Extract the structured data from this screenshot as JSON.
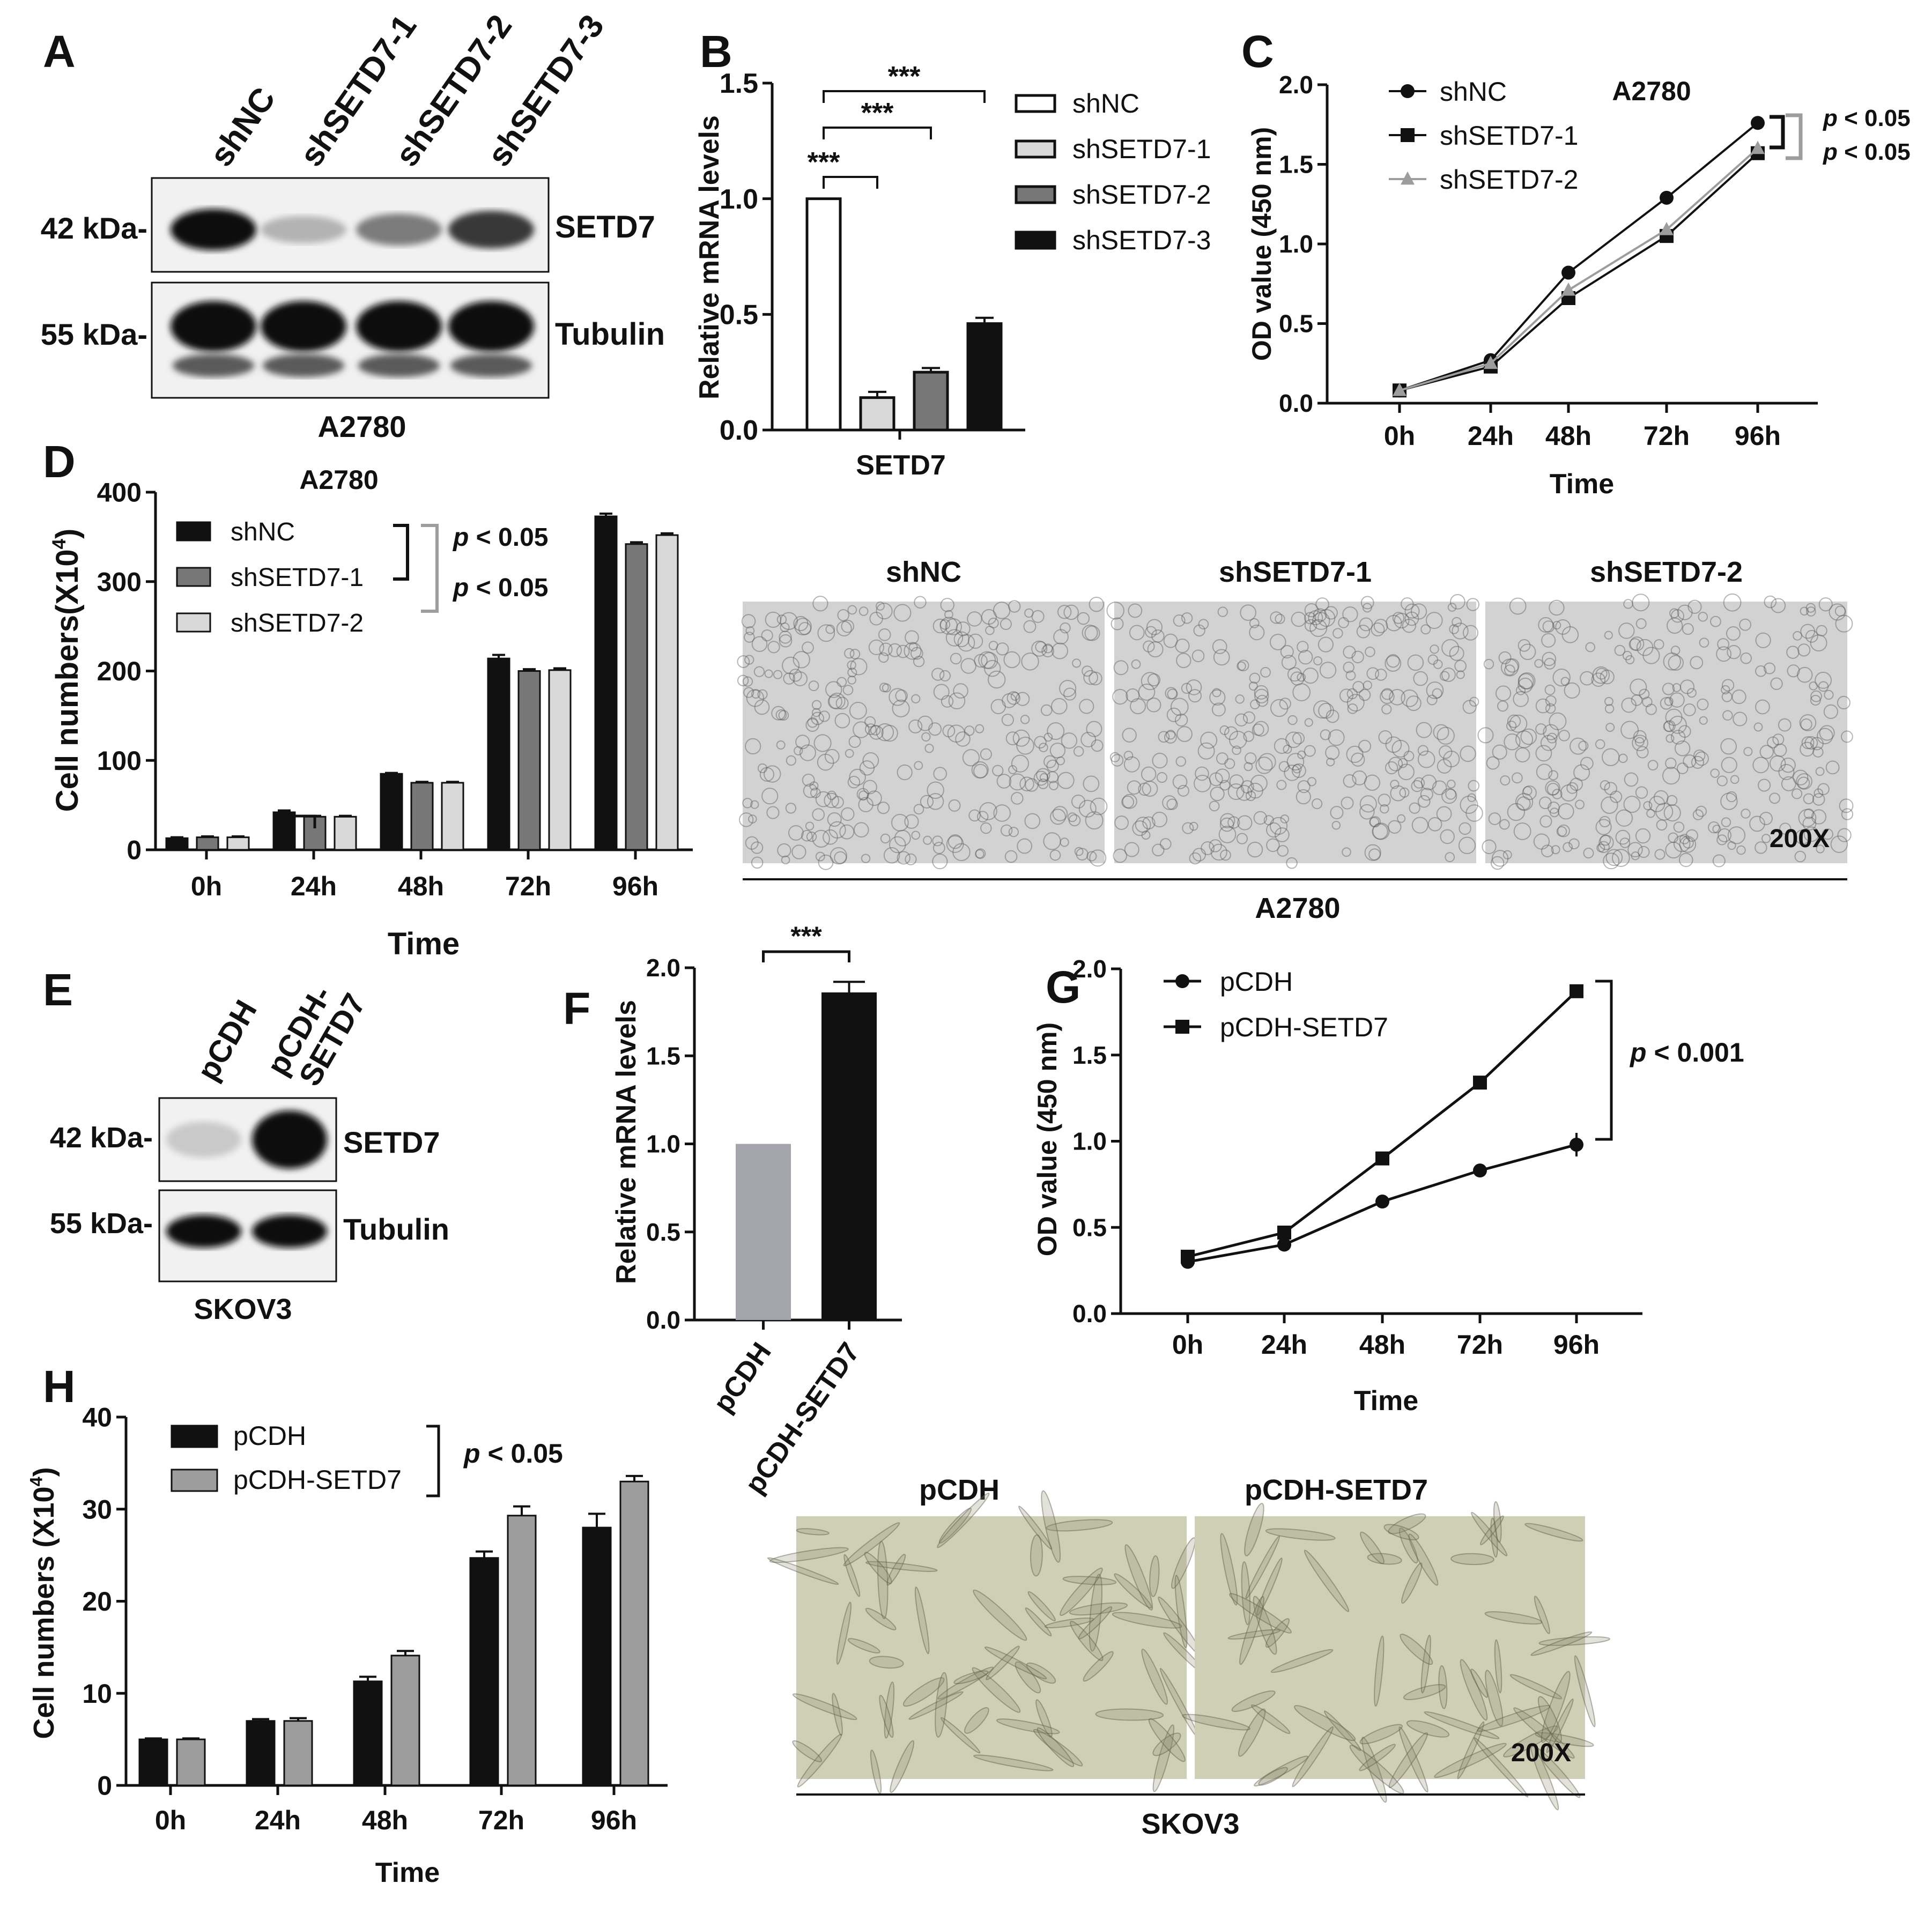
{
  "colors": {
    "black": "#111111",
    "dark_gray": "#777777",
    "mid_gray": "#9d9d9d",
    "light_gray": "#d9d9d9",
    "pcdh_gray": "#a4a4ac",
    "micro_a2780": "#d2d2d2",
    "micro_skov3": "#cfcfb6"
  },
  "panel_A": {
    "letter": "A",
    "lanes": [
      "shNC",
      "shSETD7-1",
      "shSETD7-2",
      "shSETD7-3"
    ],
    "mw_setd7": "42 kDa-",
    "mw_tubulin": "55 kDa-",
    "label_setd7": "SETD7",
    "label_tubulin": "Tubulin",
    "cell_line": "A2780",
    "setd7_band_intensity": [
      1.0,
      0.25,
      0.5,
      0.8
    ],
    "tubulin_band_intensity": [
      1.0,
      1.0,
      1.0,
      1.0
    ]
  },
  "panel_E": {
    "letter": "E",
    "lanes": [
      "pCDH",
      "pCDH-\nSETD7"
    ],
    "mw_setd7": "42 kDa-",
    "mw_tubulin": "55 kDa-",
    "label_setd7": "SETD7",
    "label_tubulin": "Tubulin",
    "cell_line": "SKOV3",
    "setd7_band_intensity": [
      0.15,
      1.0
    ],
    "tubulin_band_intensity": [
      1.0,
      1.0
    ]
  },
  "panel_D_images": {
    "titles": [
      "shNC",
      "shSETD7-1",
      "shSETD7-2"
    ],
    "magnification": "200X",
    "cell_line": "A2780"
  },
  "panel_H_images": {
    "titles": [
      "pCDH",
      "pCDH-SETD7"
    ],
    "magnification": "200X",
    "cell_line": "SKOV3"
  },
  "chart_data": [
    {
      "panel": "B",
      "type": "bar",
      "ylabel": "Relative mRNA levels",
      "xlabel": "SETD7",
      "ylim": [
        0,
        1.5
      ],
      "yticks": [
        0.0,
        0.5,
        1.0,
        1.5
      ],
      "yticklabels": [
        "0.0",
        "0.5",
        "1.0",
        "1.5"
      ],
      "series": [
        {
          "name": "shNC",
          "values": [
            1.0
          ],
          "errors": [
            0
          ]
        },
        {
          "name": "shSETD7-1",
          "values": [
            0.14
          ],
          "errors": [
            0.025
          ]
        },
        {
          "name": "shSETD7-2",
          "values": [
            0.25
          ],
          "errors": [
            0.018
          ]
        },
        {
          "name": "shSETD7-3",
          "values": [
            0.46
          ],
          "errors": [
            0.025
          ]
        }
      ],
      "significance": [
        {
          "from": 0,
          "to": 1,
          "label": "***"
        },
        {
          "from": 0,
          "to": 2,
          "label": "***"
        },
        {
          "from": 0,
          "to": 3,
          "label": "***"
        }
      ],
      "legend": "right"
    },
    {
      "panel": "C",
      "type": "line",
      "title": "A2780",
      "ylabel": "OD value (450 nm)",
      "xlabel": "Time",
      "categories": [
        "0h",
        "24h",
        "48h",
        "72h",
        "96h"
      ],
      "ylim": [
        0,
        2.0
      ],
      "yticks": [
        0.0,
        0.5,
        1.0,
        1.5,
        2.0
      ],
      "yticklabels": [
        "0.0",
        "0.5",
        "1.0",
        "1.5",
        "2.0"
      ],
      "series": [
        {
          "name": "shNC",
          "values": [
            0.08,
            0.27,
            0.82,
            1.29,
            1.76
          ]
        },
        {
          "name": "shSETD7-1",
          "values": [
            0.08,
            0.23,
            0.66,
            1.05,
            1.57
          ]
        },
        {
          "name": "shSETD7-2",
          "values": [
            0.08,
            0.25,
            0.71,
            1.09,
            1.6
          ]
        }
      ],
      "pvalues": [
        "p < 0.05",
        "p < 0.05"
      ],
      "legend": "top-left"
    },
    {
      "panel": "D",
      "type": "bar",
      "title": "A2780",
      "ylabel": "Cell numbers(X10",
      "ylabel_sup": "4",
      "ylabel_end": ")",
      "xlabel": "Time",
      "categories": [
        "0h",
        "24h",
        "48h",
        "72h",
        "96h"
      ],
      "ylim": [
        0,
        400
      ],
      "yticks": [
        0,
        100,
        200,
        300,
        400
      ],
      "yticklabels": [
        "0",
        "100",
        "200",
        "300",
        "400"
      ],
      "series": [
        {
          "name": "shNC",
          "values": [
            13,
            42,
            85,
            214,
            373
          ],
          "errors": [
            1,
            2,
            1,
            4,
            3
          ]
        },
        {
          "name": "shSETD7-1",
          "values": [
            14,
            37,
            75,
            200,
            342
          ],
          "errors": [
            1,
            1,
            1,
            2,
            2
          ]
        },
        {
          "name": "shSETD7-2",
          "values": [
            14,
            37,
            75,
            201,
            352
          ],
          "errors": [
            1,
            1,
            1,
            2,
            2
          ]
        }
      ],
      "pvalues": [
        "p < 0.05",
        "p < 0.05"
      ],
      "legend": "top-left"
    },
    {
      "panel": "F",
      "type": "bar",
      "ylabel": "Relative mRNA levels",
      "categories": [
        "pCDH",
        "pCDH-SETD7"
      ],
      "ylim": [
        0,
        2.0
      ],
      "yticks": [
        0.0,
        0.5,
        1.0,
        1.5,
        2.0
      ],
      "yticklabels": [
        "0.0",
        "0.5",
        "1.0",
        "1.5",
        "2.0"
      ],
      "values": [
        1.0,
        1.86
      ],
      "errors": [
        0,
        0.06
      ],
      "significance": [
        {
          "from": 0,
          "to": 1,
          "label": "***"
        }
      ]
    },
    {
      "panel": "G",
      "type": "line",
      "ylabel": "OD value (450 nm)",
      "xlabel": "Time",
      "categories": [
        "0h",
        "24h",
        "48h",
        "72h",
        "96h"
      ],
      "ylim": [
        0,
        2.0
      ],
      "yticks": [
        0.0,
        0.5,
        1.0,
        1.5,
        2.0
      ],
      "yticklabels": [
        "0.0",
        "0.5",
        "1.0",
        "1.5",
        "2.0"
      ],
      "series": [
        {
          "name": "pCDH",
          "values": [
            0.3,
            0.4,
            0.65,
            0.83,
            0.98
          ]
        },
        {
          "name": "pCDH-SETD7",
          "values": [
            0.33,
            0.47,
            0.9,
            1.34,
            1.87
          ]
        }
      ],
      "pvalue": "p < 0.001",
      "legend": "top-left"
    },
    {
      "panel": "H",
      "type": "bar",
      "ylabel": "Cell numbers (X10",
      "ylabel_sup": "4",
      "ylabel_end": ")",
      "xlabel": "Time",
      "categories": [
        "0h",
        "24h",
        "48h",
        "72h",
        "96h"
      ],
      "ylim": [
        0,
        40
      ],
      "yticks": [
        0,
        10,
        20,
        30,
        40
      ],
      "yticklabels": [
        "0",
        "10",
        "20",
        "30",
        "40"
      ],
      "series": [
        {
          "name": "pCDH",
          "values": [
            5.0,
            7.0,
            11.3,
            24.7,
            28.0
          ],
          "errors": [
            0.1,
            0.2,
            0.5,
            0.7,
            1.5
          ]
        },
        {
          "name": "pCDH-SETD7",
          "values": [
            5.0,
            7.0,
            14.1,
            29.3,
            33.0
          ],
          "errors": [
            0.1,
            0.3,
            0.5,
            1.0,
            0.6
          ]
        }
      ],
      "pvalue": "p < 0.05",
      "legend": "top-left"
    }
  ]
}
